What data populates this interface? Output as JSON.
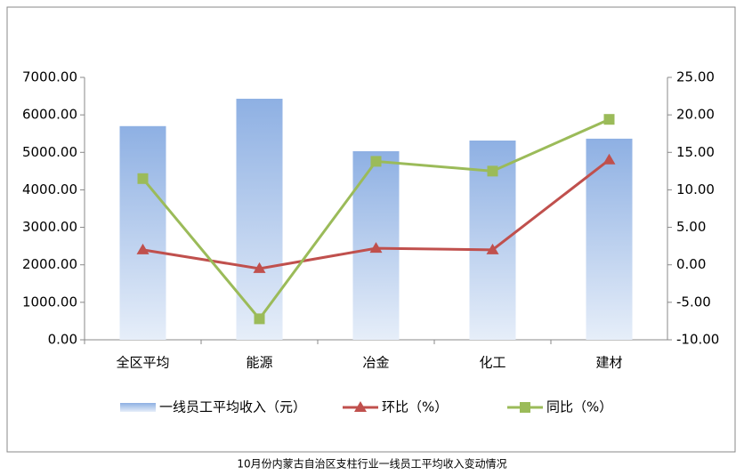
{
  "chart_data": {
    "type": "bar-line",
    "title": "10月份内蒙古自治区支柱行业一线员工平均收入变动情况",
    "categories": [
      "全区平均",
      "能源",
      "冶金",
      "化工",
      "建材"
    ],
    "series": [
      {
        "name": "一线员工平均收入（元）",
        "type": "bar",
        "color": "#8eb0e3",
        "values": [
          5700,
          6430,
          5030,
          5315,
          5365
        ]
      },
      {
        "name": "环比（%）",
        "type": "line",
        "axis": "y2",
        "color": "#c0504d",
        "marker": "triangle",
        "values": [
          2.0,
          -0.5,
          2.2,
          2.0,
          14.0
        ]
      },
      {
        "name": "同比（%）",
        "type": "line",
        "axis": "y2",
        "color": "#9bbb59",
        "marker": "square",
        "values": [
          11.5,
          -7.2,
          13.8,
          12.5,
          19.4
        ]
      }
    ],
    "ylim": [
      0,
      7000
    ],
    "yticks": [
      {
        "value": 0,
        "label": "0.00"
      },
      {
        "value": 1000,
        "label": "1000.00"
      },
      {
        "value": 2000,
        "label": "2000.00"
      },
      {
        "value": 3000,
        "label": "3000.00"
      },
      {
        "value": 4000,
        "label": "4000.00"
      },
      {
        "value": 5000,
        "label": "5000.00"
      },
      {
        "value": 6000,
        "label": "6000.00"
      },
      {
        "value": 7000,
        "label": "7000.00"
      }
    ],
    "y2lim": [
      -10,
      25
    ],
    "y2ticks": [
      {
        "value": -10,
        "label": "-10.00"
      },
      {
        "value": -5,
        "label": "-5.00"
      },
      {
        "value": 0,
        "label": "0.00"
      },
      {
        "value": 5,
        "label": "5.00"
      },
      {
        "value": 10,
        "label": "10.00"
      },
      {
        "value": 15,
        "label": "15.00"
      },
      {
        "value": 20,
        "label": "20.00"
      },
      {
        "value": 25,
        "label": "25.00"
      }
    ],
    "legend": "bottom"
  }
}
